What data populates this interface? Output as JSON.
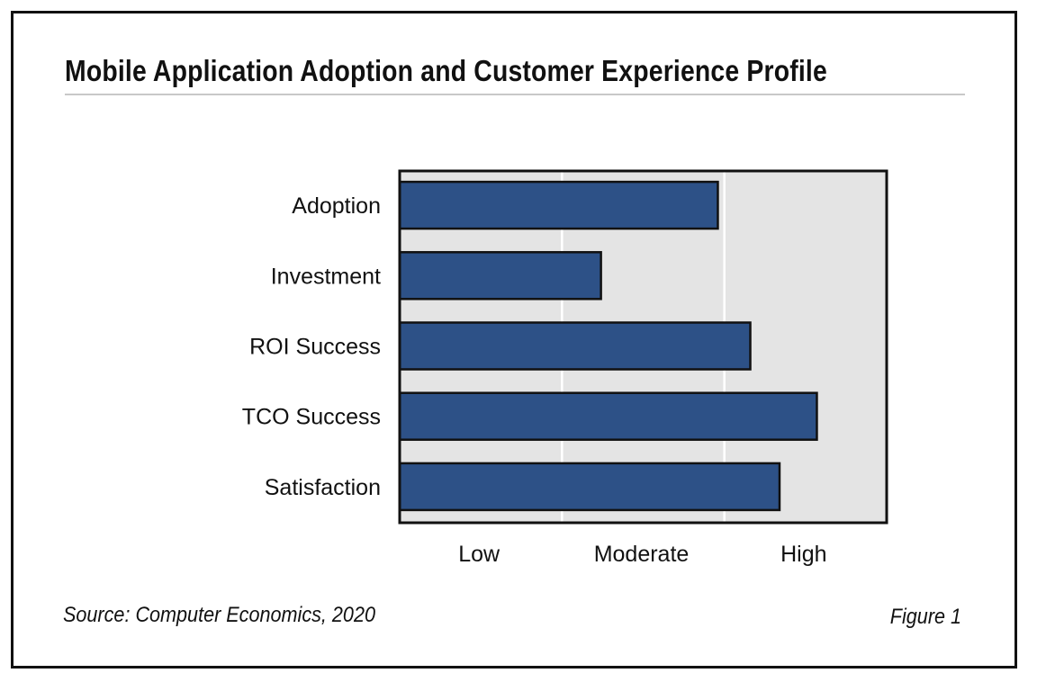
{
  "chart_data": {
    "type": "bar",
    "orientation": "horizontal",
    "title": "Mobile Application Adoption and Customer Experience Profile",
    "categories": [
      "Adoption",
      "Investment",
      "ROI Success",
      "TCO Success",
      "Satisfaction"
    ],
    "values": [
      1.96,
      1.24,
      2.16,
      2.57,
      2.34
    ],
    "xlim": [
      0,
      3
    ],
    "x_tick_labels": [
      "Low",
      "Moderate",
      "High"
    ],
    "xlabel": "",
    "ylabel": "",
    "grid": true,
    "colors": {
      "bar": "#2d5187",
      "plot_bg": "#e4e4e4",
      "gridline": "#ffffff"
    }
  },
  "source": "Source: Computer Economics, 2020",
  "figure_label": "Figure 1"
}
